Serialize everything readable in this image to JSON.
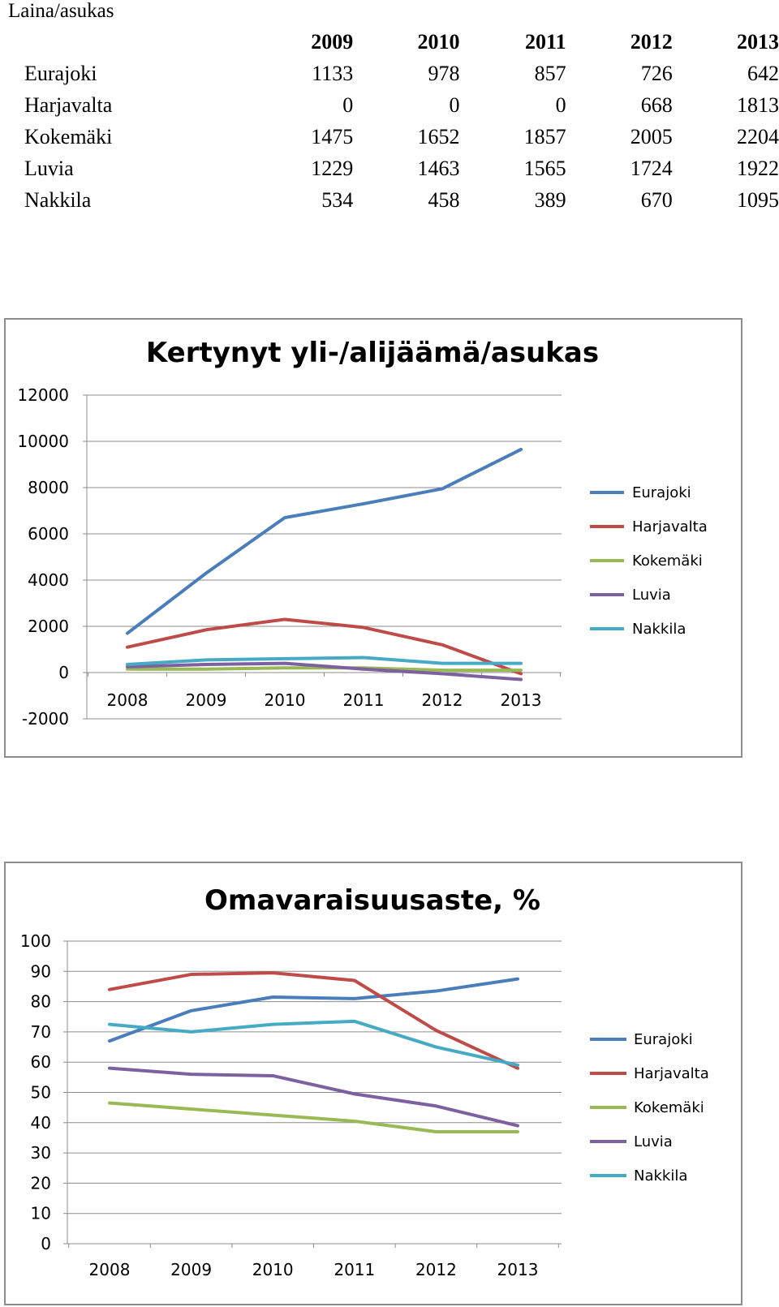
{
  "table": {
    "title": "Laina/asukas",
    "years": [
      "2009",
      "2010",
      "2011",
      "2012",
      "2013"
    ],
    "rows": [
      {
        "name": "Eurajoki",
        "values": [
          "1133",
          "978",
          "857",
          "726",
          "642"
        ]
      },
      {
        "name": "Harjavalta",
        "values": [
          "0",
          "0",
          "0",
          "668",
          "1813"
        ]
      },
      {
        "name": "Kokemäki",
        "values": [
          "1475",
          "1652",
          "1857",
          "2005",
          "2204"
        ]
      },
      {
        "name": "Luvia",
        "values": [
          "1229",
          "1463",
          "1565",
          "1724",
          "1922"
        ]
      },
      {
        "name": "Nakkila",
        "values": [
          "534",
          "458",
          "389",
          "670",
          "1095"
        ]
      }
    ]
  },
  "chart_data": [
    {
      "type": "line",
      "title": "Kertynyt yli-/alijäämä/asukas",
      "xlabel": "",
      "ylabel": "",
      "categories": [
        "2008",
        "2009",
        "2010",
        "2011",
        "2012",
        "2013"
      ],
      "ylim": [
        -2000,
        12000
      ],
      "yticks": [
        -2000,
        0,
        2000,
        4000,
        6000,
        8000,
        10000,
        12000
      ],
      "grid": true,
      "legend_position": "right",
      "series": [
        {
          "name": "Eurajoki",
          "color": "#4a7ebb",
          "values": [
            1700,
            4300,
            6700,
            7300,
            7950,
            9650
          ]
        },
        {
          "name": "Harjavalta",
          "color": "#be4b48",
          "values": [
            1100,
            1850,
            2300,
            1950,
            1200,
            -50
          ]
        },
        {
          "name": "Kokemäki",
          "color": "#98b954",
          "values": [
            150,
            150,
            200,
            200,
            100,
            100
          ]
        },
        {
          "name": "Luvia",
          "color": "#7d60a0",
          "values": [
            250,
            350,
            400,
            150,
            -50,
            -300
          ]
        },
        {
          "name": "Nakkila",
          "color": "#46aac5",
          "values": [
            350,
            550,
            600,
            650,
            400,
            400
          ]
        }
      ]
    },
    {
      "type": "line",
      "title": "Omavaraisuusaste, %",
      "xlabel": "",
      "ylabel": "",
      "categories": [
        "2008",
        "2009",
        "2010",
        "2011",
        "2012",
        "2013"
      ],
      "ylim": [
        0,
        100
      ],
      "yticks": [
        0,
        10,
        20,
        30,
        40,
        50,
        60,
        70,
        80,
        90,
        100
      ],
      "grid": true,
      "legend_position": "right",
      "series": [
        {
          "name": "Eurajoki",
          "color": "#4a7ebb",
          "values": [
            67,
            77,
            81.5,
            81,
            83.5,
            87.5
          ]
        },
        {
          "name": "Harjavalta",
          "color": "#be4b48",
          "values": [
            84,
            89,
            89.5,
            87,
            70.5,
            58
          ]
        },
        {
          "name": "Kokemäki",
          "color": "#98b954",
          "values": [
            46.5,
            44.5,
            42.5,
            40.5,
            37,
            37
          ]
        },
        {
          "name": "Luvia",
          "color": "#7d60a0",
          "values": [
            58,
            56,
            55.5,
            49.5,
            45.5,
            39
          ]
        },
        {
          "name": "Nakkila",
          "color": "#46aac5",
          "values": [
            72.5,
            70,
            72.5,
            73.5,
            65,
            59
          ]
        }
      ]
    }
  ]
}
